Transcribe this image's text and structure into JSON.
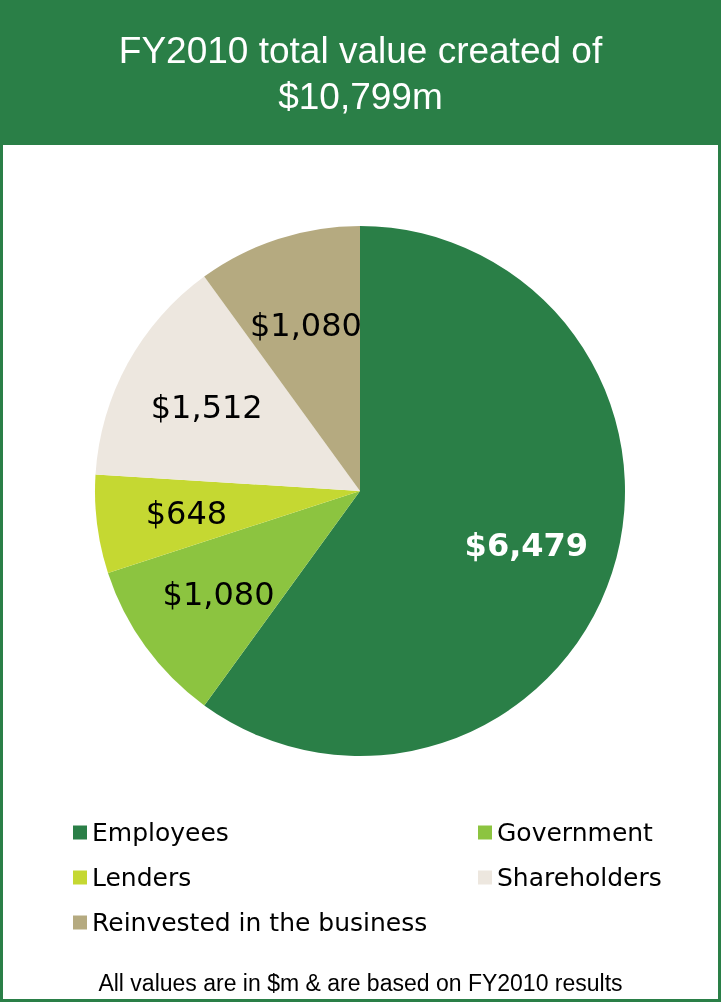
{
  "chart_data": {
    "type": "pie",
    "title": "FY2010 total value created of $10,799m",
    "categories": [
      "Employees",
      "Government",
      "Lenders",
      "Shareholders",
      "Reinvested in the business"
    ],
    "values": [
      6479,
      1080,
      648,
      1512,
      1080
    ],
    "colors": [
      "#2a7f47",
      "#8cc440",
      "#c5d832",
      "#ede7df",
      "#b5aa80"
    ],
    "value_labels": [
      "$6,479",
      "$1,080",
      "$648",
      "$1,512",
      "$1,080"
    ],
    "legend": "bottom",
    "annotations": [
      "All values are in $m & are based on FY2010 results"
    ]
  }
}
